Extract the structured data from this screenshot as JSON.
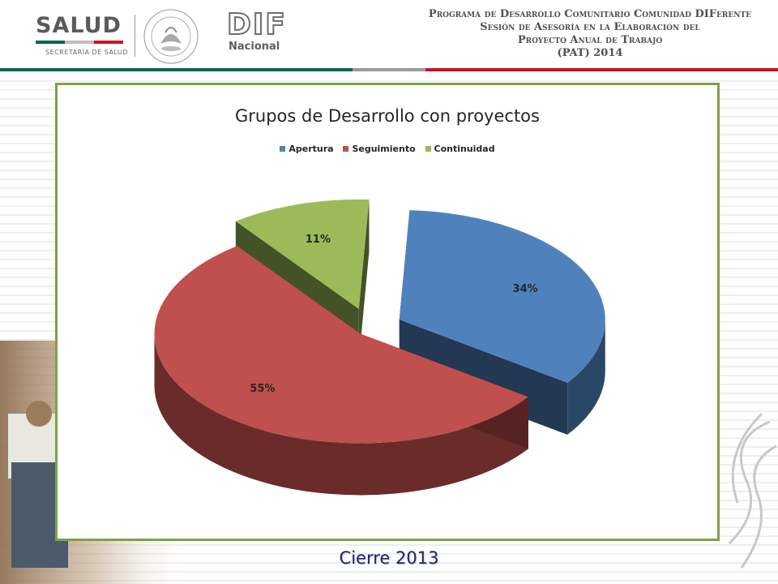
{
  "header": {
    "salud_title": "SALUD",
    "salud_subtitle": "SECRETARÍA DE SALUD",
    "seal_text": "ESTADOS UNIDOS MEXICANOS",
    "dif_title": "DIF",
    "dif_subtitle": "Nacional",
    "program_lines": [
      "Programa de Desarrollo Comunitario Comunidad DIFerente",
      "Sesión de Asesoría en la Elaboración del",
      "Proyecto Anual de Trabajo",
      "(PAT) 2014"
    ]
  },
  "colors": {
    "frame_border": "#7fa04a",
    "header_line_green": "#006847",
    "header_line_red": "#ce1126",
    "header_line_gray": "#9a9a9a",
    "caption": "#1a237e"
  },
  "chart_data": {
    "type": "pie",
    "title": "Grupos de Desarrollo con proyectos",
    "legend_position": "top",
    "exploded": true,
    "three_d": true,
    "series": [
      {
        "name": "Apertura",
        "value": 34,
        "label": "34%",
        "color": "#4f81bd"
      },
      {
        "name": "Seguimiento",
        "value": 55,
        "label": "55%",
        "color": "#c0504d"
      },
      {
        "name": "Continuidad",
        "value": 11,
        "label": "11%",
        "color": "#9bbb59"
      }
    ]
  },
  "caption": "Cierre 2013"
}
